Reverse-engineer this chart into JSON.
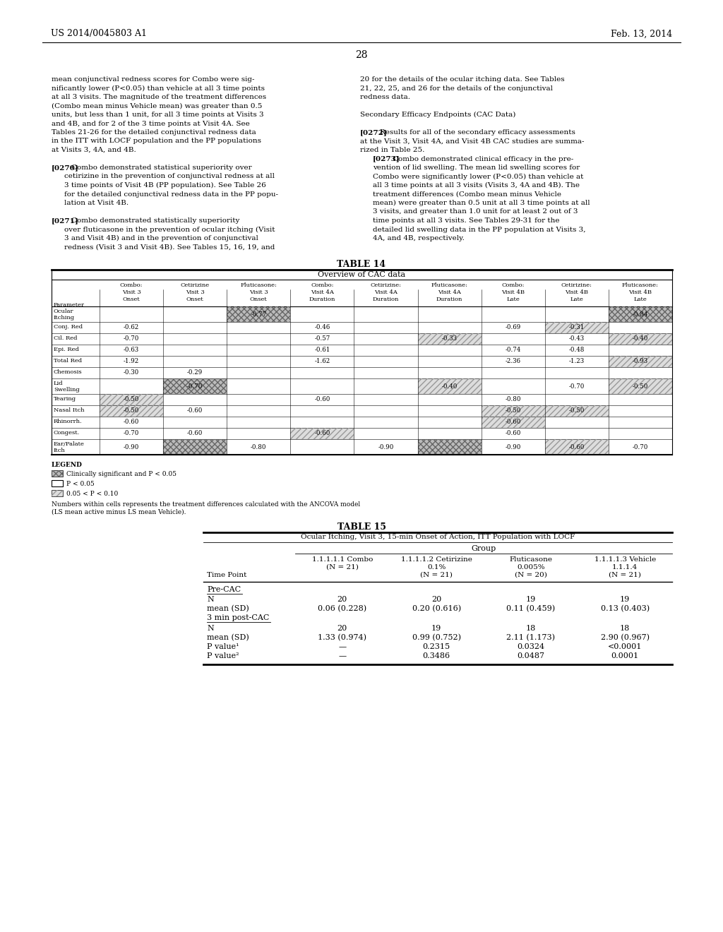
{
  "header_left": "US 2014/0045803 A1",
  "header_right": "Feb. 13, 2014",
  "page_number": "28",
  "background_color": "#ffffff",
  "left_col_lines": [
    "mean conjunctival redness scores for Combo were sig-",
    "nificantly lower (P<0.05) than vehicle at all 3 time points",
    "at all 3 visits. The magnitude of the treatment differences",
    "(Combo mean minus Vehicle mean) was greater than 0.5",
    "units, but less than 1 unit, for all 3 time points at Visits 3",
    "and 4B, and for 2 of the 3 time points at Visit 4A. See",
    "Tables 21-26 for the detailed conjunctival redness data",
    "in the ITT with LOCF population and the PP populations",
    "at Visits 3, 4A, and 4B.",
    "",
    "[0270]   Combo demonstrated statistical superiority over",
    "    cetirizine in the prevention of conjunctival redness at all",
    "    3 time points of Visit 4B (PP population). See Table 26",
    "    for the detailed conjunctival redness data in the PP popu-",
    "    lation at Visit 4B.",
    "",
    "[0271]   Combo demonstrated statistically superiority",
    "    over fluticasone in the prevention of ocular itching (Visit",
    "    3 and Visit 4B) and in the prevention of conjunctival",
    "    redness (Visit 3 and Visit 4B). See Tables 15, 16, 19, and"
  ],
  "right_col_lines": [
    "20 for the details of the ocular itching data. See Tables",
    "21, 22, 25, and 26 for the details of the conjunctival",
    "redness data.",
    "",
    "Secondary Efficacy Endpoints (CAC Data)",
    "",
    "[0272]   Results for all of the secondary efficacy assessments",
    "at the Visit 3, Visit 4A, and Visit 4B CAC studies are summa-",
    "rized in Table 25.",
    "    [0273]   Combo demonstrated clinical efficacy in the pre-",
    "    vention of lid swelling. The mean lid swelling scores for",
    "    Combo were significantly lower (P<0.05) than vehicle at",
    "    all 3 time points at all 3 visits (Visits 3, 4A and 4B). The",
    "    treatment differences (Combo mean minus Vehicle",
    "    mean) were greater than 0.5 unit at all 3 time points at all",
    "    3 visits, and greater than 1.0 unit for at least 2 out of 3",
    "    time points at all 3 visits. See Tables 29-31 for the",
    "    detailed lid swelling data in the PP population at Visits 3,",
    "    4A, and 4B, respectively."
  ],
  "table14_title": "TABLE 14",
  "table14_subtitle": "Overview of CAC data",
  "table14_col_headers": [
    [
      "Combo:",
      "Visit 3",
      "Onset"
    ],
    [
      "Cetirizine",
      "Visit 3",
      "Onset"
    ],
    [
      "Fluticasone:",
      "Visit 3",
      "Onset"
    ],
    [
      "Combo:",
      "Visit 4A",
      "Duration"
    ],
    [
      "Cetirizine:",
      "Visit 4A",
      "Duration"
    ],
    [
      "Fluticasone:",
      "Visit 4A",
      "Duration"
    ],
    [
      "Combo:",
      "Visit 4B",
      "Late"
    ],
    [
      "Cetirizine:",
      "Visit 4B",
      "Late"
    ],
    [
      "Fluticasone:",
      "Visit 4B",
      "Late"
    ]
  ],
  "table14_param_header": "Parameter",
  "table14_row_labels": [
    [
      "Ocular",
      "Itching"
    ],
    [
      "Conj. Red"
    ],
    [
      "Cil. Red"
    ],
    [
      "Epi. Red"
    ],
    [
      "Total Red"
    ],
    [
      "Chemosis"
    ],
    [
      "Lid",
      "Swelling"
    ],
    [
      "Tearing"
    ],
    [
      "Nasal Itch"
    ],
    [
      "Rhinorrh."
    ],
    [
      "Congest."
    ],
    [
      "Ear/Palate",
      "Itch"
    ]
  ],
  "table14_data": [
    [
      "",
      "",
      "-0.77",
      "",
      "",
      "",
      "",
      "",
      "-0.84"
    ],
    [
      "-0.62",
      "",
      "",
      "-0.46",
      "",
      "",
      "-0.69",
      "-0.31",
      ""
    ],
    [
      "-0.70",
      "",
      "",
      "-0.57",
      "",
      "-0.33",
      "",
      "-0.43",
      "-0.40"
    ],
    [
      "-0.63",
      "",
      "",
      "-0.61",
      "",
      "",
      "-0.74",
      "-0.48",
      ""
    ],
    [
      "-1.92",
      "",
      "",
      "-1.62",
      "",
      "",
      "-2.36",
      "-1.23",
      "-0.93"
    ],
    [
      "-0.30",
      "-0.29",
      "",
      "",
      "",
      "",
      "",
      "",
      ""
    ],
    [
      "",
      "-0.70",
      "",
      "",
      "",
      "-0.40",
      "",
      "-0.70",
      "-0.50"
    ],
    [
      "-0.50",
      "",
      "",
      "-0.60",
      "",
      "",
      "-0.80",
      "",
      ""
    ],
    [
      "-0.50",
      "-0.60",
      "",
      "",
      "",
      "",
      "-0.50",
      "-0.50",
      ""
    ],
    [
      "-0.60",
      "",
      "",
      "",
      "",
      "",
      "-0.60",
      "",
      ""
    ],
    [
      "-0.70",
      "-0.60",
      "",
      "-0.60",
      "",
      "",
      "-0.60",
      "",
      ""
    ],
    [
      "-0.90",
      "",
      "-0.80",
      "",
      "-0.90",
      "",
      "-0.90",
      "-0.60",
      "-0.70"
    ]
  ],
  "table14_shading": [
    [
      0,
      0,
      1,
      0,
      0,
      0,
      0,
      0,
      1
    ],
    [
      0,
      0,
      0,
      0,
      0,
      0,
      0,
      2,
      0
    ],
    [
      0,
      0,
      0,
      0,
      0,
      2,
      0,
      0,
      2
    ],
    [
      0,
      0,
      0,
      0,
      0,
      0,
      0,
      0,
      0
    ],
    [
      0,
      0,
      0,
      0,
      0,
      0,
      0,
      0,
      2
    ],
    [
      0,
      0,
      0,
      0,
      0,
      0,
      0,
      0,
      0
    ],
    [
      0,
      1,
      0,
      0,
      0,
      2,
      0,
      0,
      2
    ],
    [
      2,
      0,
      0,
      0,
      0,
      0,
      0,
      0,
      0
    ],
    [
      2,
      0,
      0,
      0,
      0,
      0,
      2,
      2,
      0
    ],
    [
      0,
      0,
      0,
      0,
      0,
      0,
      2,
      0,
      0
    ],
    [
      0,
      0,
      0,
      2,
      0,
      0,
      0,
      0,
      0
    ],
    [
      0,
      1,
      0,
      0,
      0,
      1,
      0,
      2,
      0
    ]
  ],
  "legend_footnote1": "Numbers within cells represents the treatment differences calculated with the ANCOVA model",
  "legend_footnote2": "(LS mean active minus LS mean Vehicle).",
  "table15_title": "TABLE 15",
  "table15_subtitle": "Ocular Itching, Visit 3, 15-min Onset of Action, ITT Population with LOCF",
  "table15_group_label": "Group",
  "table15_col1": [
    "1.1.1.1.1 Combo",
    "(N = 21)"
  ],
  "table15_col2": [
    "1.1.1.1.2 Cetirizine",
    "0.1%",
    "(N = 21)"
  ],
  "table15_col3": [
    "Fluticasone",
    "0.005%",
    "(N = 20)"
  ],
  "table15_col4": [
    "1.1.1.1.3 Vehicle",
    "1.1.1.4",
    "(N = 21)"
  ],
  "table15_time_point": "Time Point",
  "table15_precac": "Pre-CAC",
  "table15_3min": "3 min post-CAC",
  "table15_pre_N": [
    "20",
    "20",
    "19",
    "19"
  ],
  "table15_pre_mean": [
    "0.06 (0.228)",
    "0.20 (0.616)",
    "0.11 (0.459)",
    "0.13 (0.403)"
  ],
  "table15_post_N": [
    "20",
    "19",
    "18",
    "18"
  ],
  "table15_post_mean": [
    "1.33 (0.974)",
    "0.99 (0.752)",
    "2.11 (1.173)",
    "2.90 (0.967)"
  ],
  "table15_pval1": [
    "—",
    "0.2315",
    "0.0324",
    "<0.0001"
  ],
  "table15_pval2": [
    "—",
    "0.3486",
    "0.0487",
    "0.0001"
  ]
}
